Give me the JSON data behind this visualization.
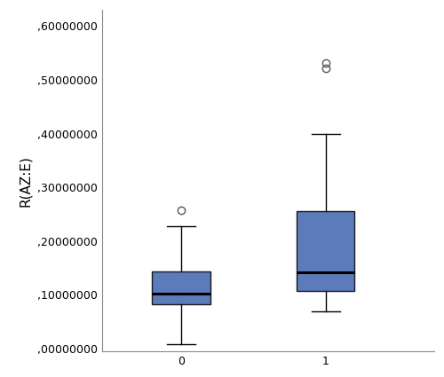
{
  "groups": [
    "0",
    "1"
  ],
  "box0": {
    "whislo": 0.008,
    "q1": 0.082,
    "med": 0.103,
    "q3": 0.143,
    "whishi": 0.228,
    "fliers": [
      0.258
    ]
  },
  "box1": {
    "whislo": 0.07,
    "q1": 0.108,
    "med": 0.142,
    "q3": 0.255,
    "whishi": 0.4,
    "fliers": [
      0.522,
      0.532
    ]
  },
  "ylim": [
    -0.005,
    0.63
  ],
  "yticks": [
    0.0,
    0.1,
    0.2,
    0.3,
    0.4,
    0.5,
    0.6
  ],
  "ylabel": "R(AZ:E)",
  "box_facecolor": "#5b7bbb",
  "box_edgecolor": "#1a1a1a",
  "median_color": "#000000",
  "whisker_color": "#000000",
  "cap_color": "#000000",
  "flier_color": "#555555",
  "background_color": "#ffffff",
  "ylabel_fontsize": 11,
  "tick_fontsize": 9
}
